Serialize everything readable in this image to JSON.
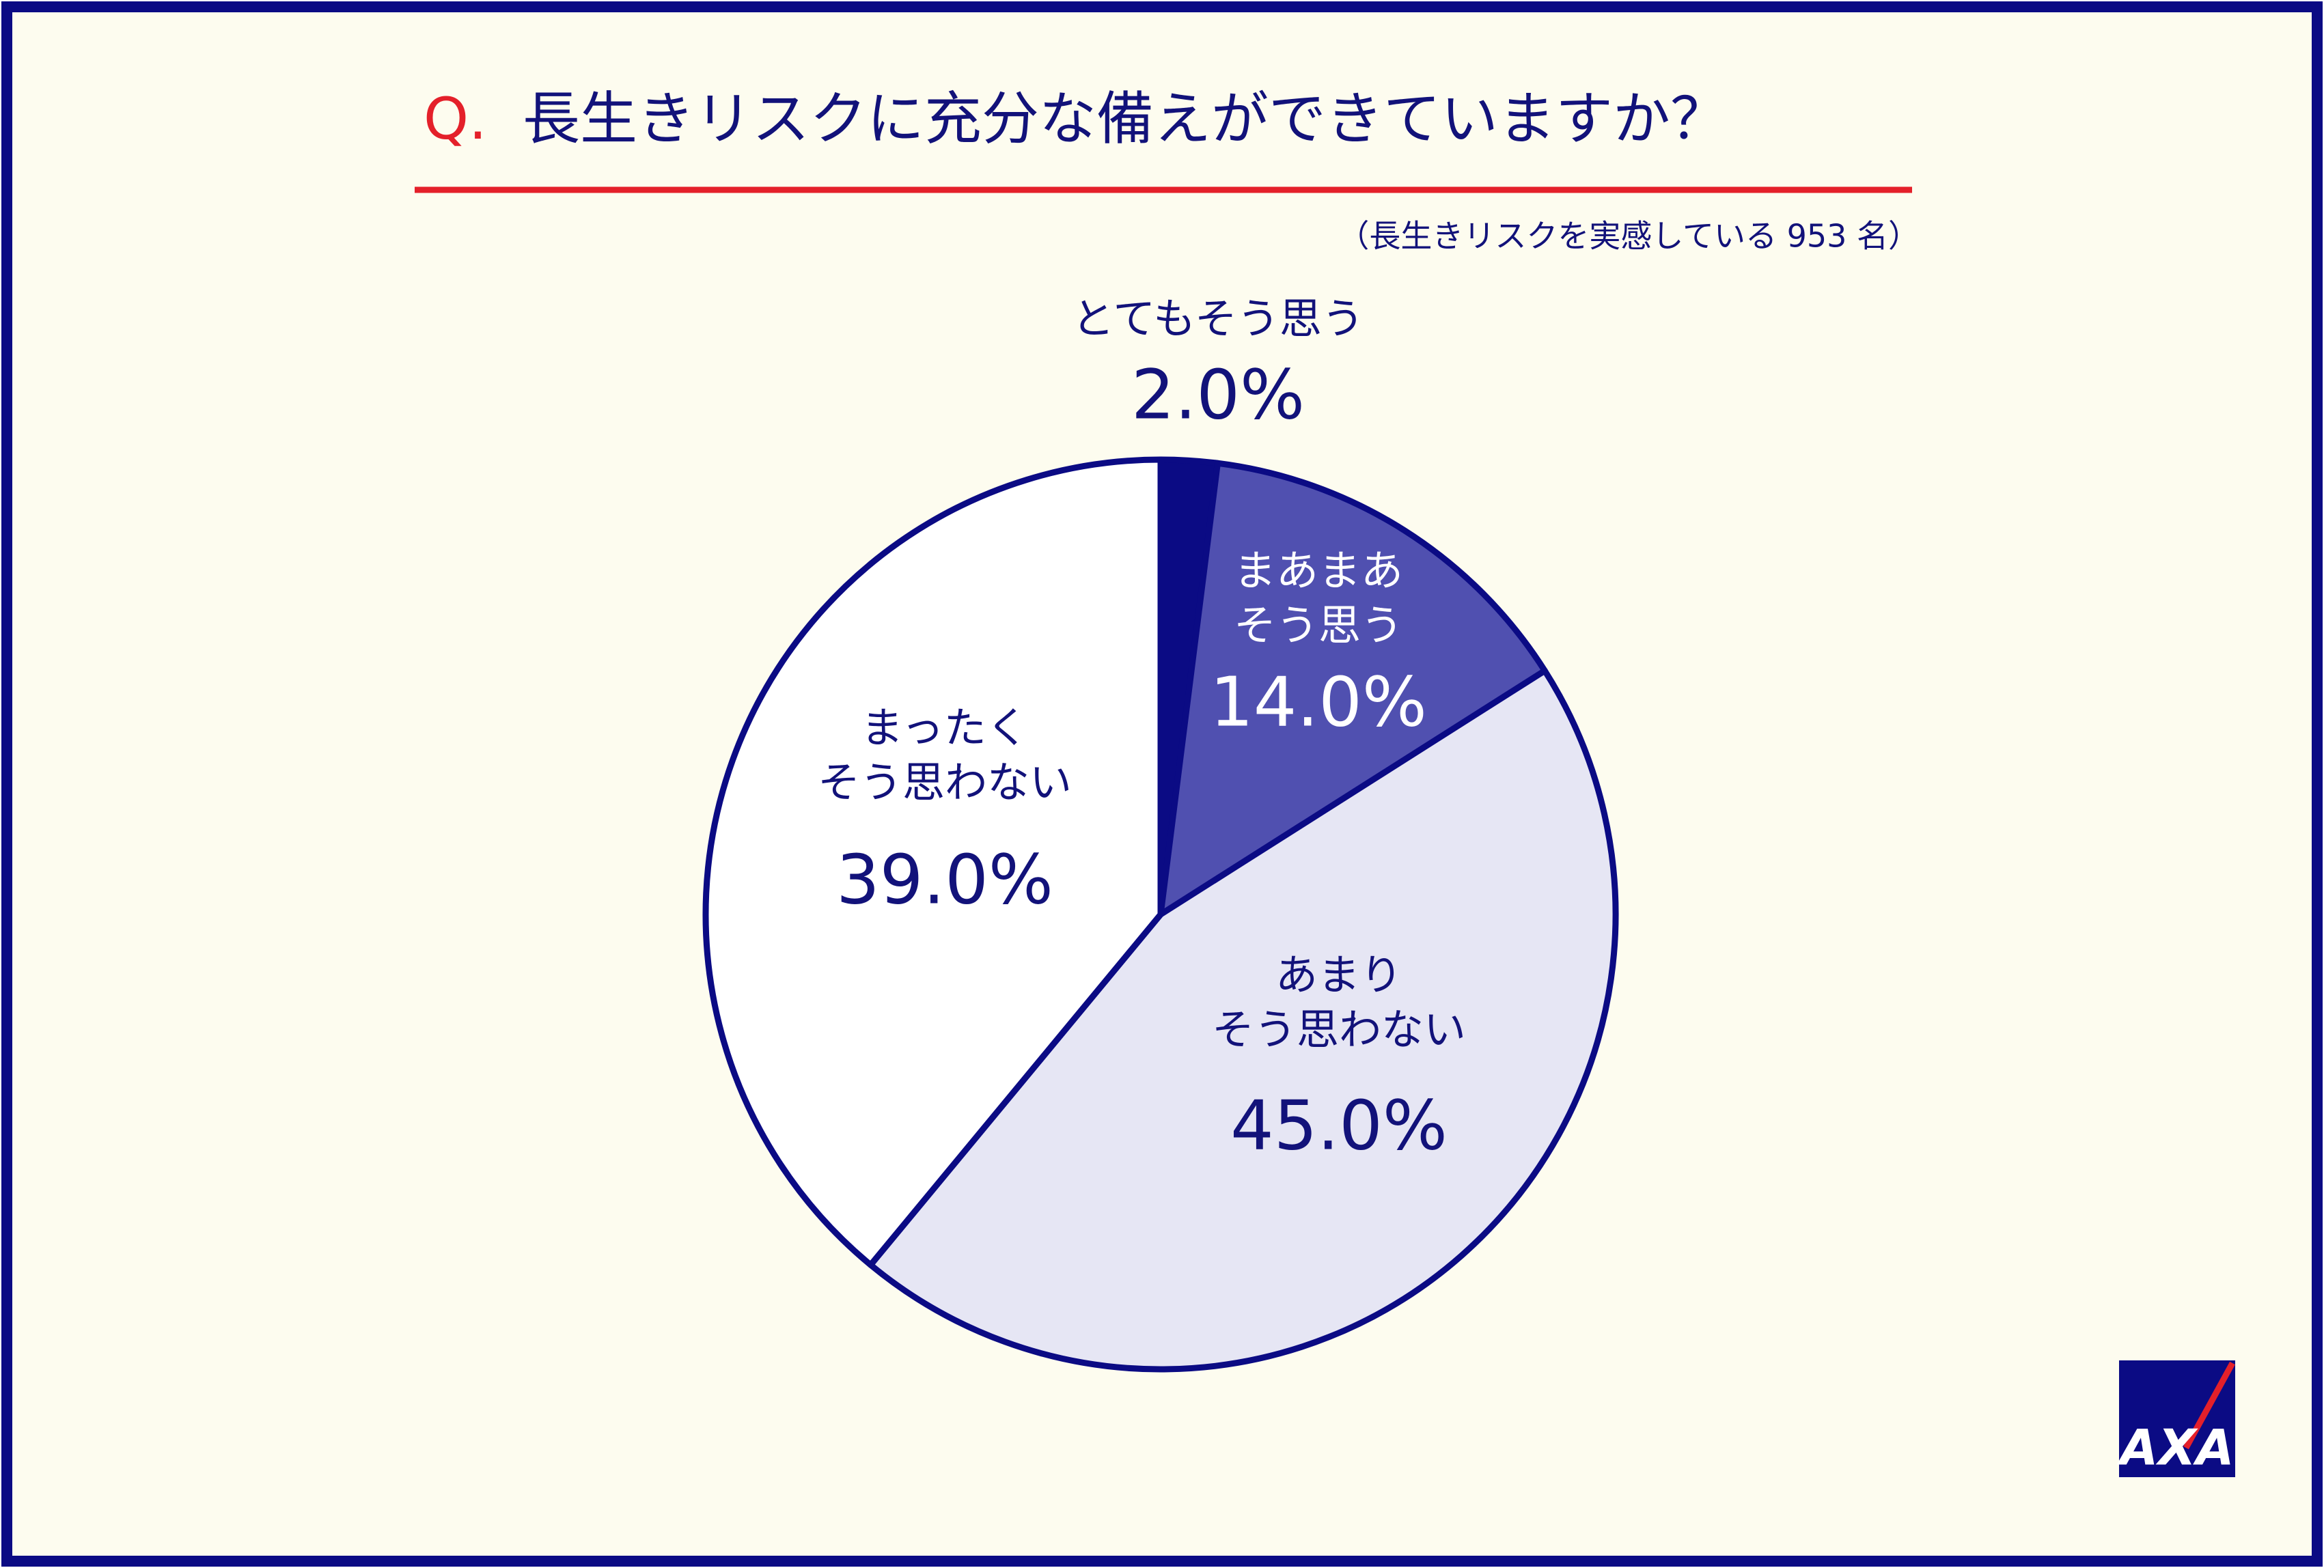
{
  "chart_data": {
    "type": "pie",
    "title_prefix": "Q.",
    "title": "長生きリスクに充分な備えができていますか？",
    "subtitle": "（長生きリスクを実感している 953 名）",
    "categories": [
      [
        "とてもそう思う"
      ],
      [
        "まあまあ",
        "そう思う"
      ],
      [
        "あまり",
        "そう思わない"
      ],
      [
        "まったく",
        "そう思わない"
      ]
    ],
    "values": [
      2.0,
      14.0,
      45.0,
      39.0
    ],
    "value_labels": [
      "2.0%",
      "14.0%",
      "45.0%",
      "39.0%"
    ],
    "colors": [
      "#0b0b84",
      "#5050b0",
      "#e6e6f4",
      "#ffffff"
    ],
    "label_colors": [
      "#12127a",
      "#ffffff",
      "#12127a",
      "#12127a"
    ],
    "logo": "AXA"
  }
}
